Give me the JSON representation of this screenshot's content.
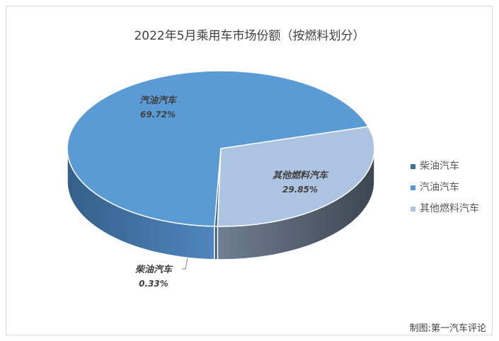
{
  "chart_data": {
    "type": "pie",
    "title": "2022年5月乘用车市场份额（按燃料划分）",
    "categories": [
      "柴油汽车",
      "汽油汽车",
      "其他燃料汽车"
    ],
    "values": [
      0.33,
      69.72,
      29.85
    ],
    "data_labels": [
      {
        "name": "柴油汽车",
        "value": "0.33%"
      },
      {
        "name": "汽油汽车",
        "value": "69.72%"
      },
      {
        "name": "其他燃料汽车",
        "value": "29.85%"
      }
    ],
    "colors": [
      "#3e6f9f",
      "#5b9bd5",
      "#adc3e2"
    ],
    "side_colors": [
      "#33557a",
      "#3f6e9c",
      "#4a5563"
    ],
    "legend": {
      "position": "right"
    },
    "style": "3d"
  },
  "credit": "制图:第一汽车评论"
}
